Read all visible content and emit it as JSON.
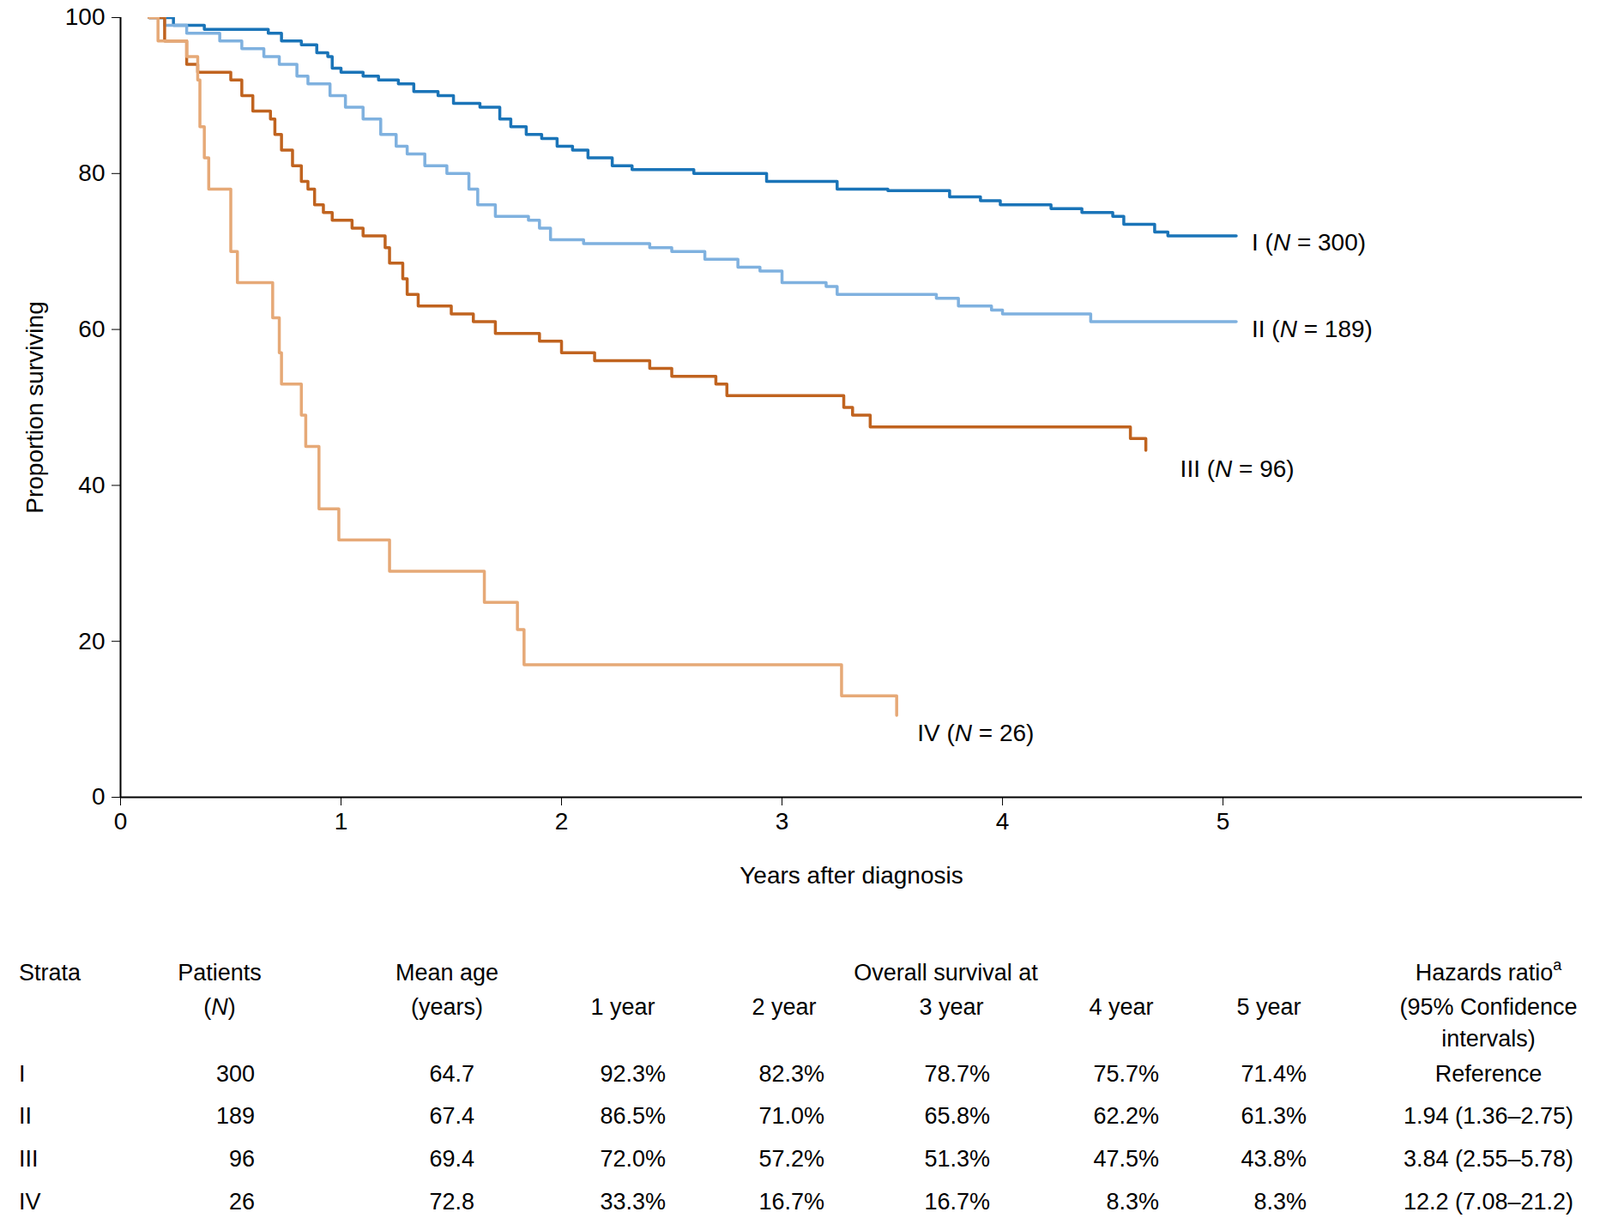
{
  "chart_data": {
    "type": "line",
    "x_label": "Years after diagnosis",
    "y_label": "Proportion surviving",
    "xlim": [
      0,
      6.63
    ],
    "xticks": [
      0,
      1,
      2,
      3,
      4,
      5
    ],
    "ylim": [
      0,
      100
    ],
    "yticks": [
      0,
      20,
      40,
      60,
      80,
      100
    ],
    "grid": false,
    "line_style": "step",
    "series": [
      {
        "name": "I (N = 300)",
        "color": "#1a74b8",
        "x": [
          0.13,
          0.24,
          0.38,
          0.67,
          0.73,
          0.82,
          0.89,
          0.94,
          0.96,
          1.0,
          1.1,
          1.17,
          1.26,
          1.33,
          1.44,
          1.51,
          1.63,
          1.72,
          1.77,
          1.84,
          1.91,
          1.98,
          2.05,
          2.12,
          2.23,
          2.32,
          2.6,
          2.93,
          3.25,
          3.48,
          3.76,
          3.9,
          3.99,
          4.22,
          4.36,
          4.5,
          4.55,
          4.69,
          4.75,
          5.06
        ],
        "values": [
          100,
          99,
          98.5,
          98,
          97,
          96.5,
          95.5,
          95,
          93.5,
          93,
          92.5,
          92,
          91.5,
          90.5,
          90,
          89,
          88.5,
          87,
          86,
          85,
          84.5,
          83.5,
          83,
          82,
          81,
          80.5,
          80,
          79,
          78,
          77.8,
          77,
          76.5,
          76,
          75.5,
          75,
          74.5,
          73.5,
          72.5,
          72,
          72
        ]
      },
      {
        "name": "II (N = 189)",
        "color": "#7fb1df",
        "x": [
          0.13,
          0.2,
          0.3,
          0.45,
          0.55,
          0.65,
          0.72,
          0.8,
          0.85,
          0.95,
          1.02,
          1.1,
          1.18,
          1.25,
          1.3,
          1.38,
          1.48,
          1.58,
          1.62,
          1.7,
          1.85,
          1.9,
          1.95,
          2.1,
          2.4,
          2.5,
          2.65,
          2.8,
          2.9,
          3.0,
          3.2,
          3.25,
          3.5,
          3.7,
          3.8,
          3.95,
          4.0,
          4.3,
          4.4,
          5.06
        ],
        "values": [
          100,
          99,
          98,
          97,
          96,
          95,
          94,
          92.5,
          91.5,
          90,
          88.5,
          87,
          85,
          83.5,
          82.5,
          81,
          80,
          78,
          76,
          74.5,
          74,
          73,
          71.5,
          71,
          70.5,
          70,
          69,
          68,
          67.5,
          66,
          65.5,
          64.5,
          64.5,
          64,
          63,
          62.5,
          62,
          62,
          61,
          61
        ]
      },
      {
        "name": "III (N = 96)",
        "color": "#c0631f",
        "x": [
          0.13,
          0.2,
          0.3,
          0.35,
          0.5,
          0.55,
          0.6,
          0.68,
          0.7,
          0.73,
          0.78,
          0.82,
          0.85,
          0.88,
          0.92,
          0.96,
          1.05,
          1.1,
          1.2,
          1.22,
          1.28,
          1.3,
          1.35,
          1.5,
          1.6,
          1.7,
          1.9,
          2.0,
          2.15,
          2.4,
          2.5,
          2.7,
          2.75,
          3.25,
          3.28,
          3.32,
          3.4,
          4.55,
          4.58,
          4.65,
          4.65
        ],
        "values": [
          100,
          97,
          94,
          93,
          92,
          90,
          88,
          87,
          85,
          83,
          81,
          79,
          78,
          76,
          75,
          74,
          73,
          72,
          70.5,
          68.5,
          66.5,
          64.5,
          63,
          62,
          61,
          59.5,
          58.5,
          57,
          56,
          55,
          54,
          53,
          51.5,
          51.5,
          50,
          49,
          47.5,
          47.5,
          46,
          46,
          44.5
        ]
      },
      {
        "name": "IV (N = 26)",
        "color": "#e6a977",
        "x": [
          0.13,
          0.17,
          0.3,
          0.35,
          0.36,
          0.38,
          0.4,
          0.5,
          0.53,
          0.69,
          0.72,
          0.73,
          0.82,
          0.84,
          0.9,
          0.99,
          1.22,
          1.65,
          1.8,
          1.83,
          3.27,
          3.5,
          3.52
        ],
        "values": [
          100,
          97,
          95,
          92,
          86,
          82,
          78,
          70,
          66,
          61.5,
          57,
          53,
          49,
          45,
          37,
          33,
          29,
          25,
          21.5,
          17,
          13,
          13,
          10.5
        ]
      }
    ]
  },
  "table": {
    "columns": [
      {
        "lines": [
          "Strata"
        ]
      },
      {
        "lines": [
          "Patients",
          "(N)"
        ]
      },
      {
        "lines": [
          "Mean age",
          "(years)"
        ]
      },
      {
        "group": "Overall survival at",
        "columns": [
          {
            "lines": [
              "1 year"
            ]
          },
          {
            "lines": [
              "2 year"
            ]
          },
          {
            "lines": [
              "3 year"
            ]
          },
          {
            "lines": [
              "4 year"
            ]
          },
          {
            "lines": [
              "5 year"
            ]
          }
        ]
      },
      {
        "lines": [
          "Hazards ratio",
          "(95% Confidence",
          "intervals)"
        ],
        "sup": "a"
      }
    ],
    "rows": [
      [
        "I",
        "300",
        "64.7",
        "92.3%",
        "82.3%",
        "78.7%",
        "75.7%",
        "71.4%",
        "Reference"
      ],
      [
        "II",
        "189",
        "67.4",
        "86.5%",
        "71.0%",
        "65.8%",
        "62.2%",
        "61.3%",
        "1.94 (1.36–2.75)"
      ],
      [
        "III",
        "96",
        "69.4",
        "72.0%",
        "57.2%",
        "51.3%",
        "47.5%",
        "43.8%",
        "3.84 (2.55–5.78)"
      ],
      [
        "IV",
        "26",
        "72.8",
        "33.3%",
        "16.7%",
        "16.7%",
        "8.3%",
        "8.3%",
        "12.2 (7.08–21.2)"
      ]
    ]
  }
}
